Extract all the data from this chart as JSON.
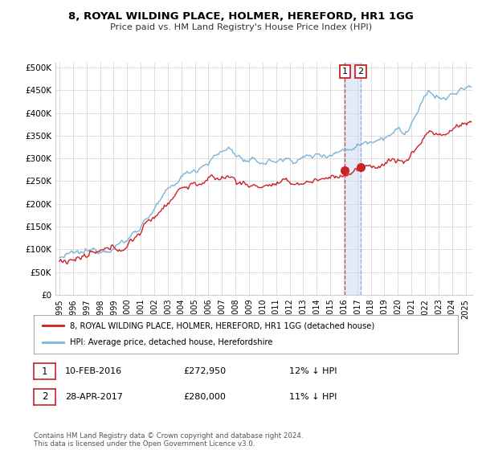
{
  "title": "8, ROYAL WILDING PLACE, HOLMER, HEREFORD, HR1 1GG",
  "subtitle": "Price paid vs. HM Land Registry's House Price Index (HPI)",
  "ylabel_ticks": [
    "£0",
    "£50K",
    "£100K",
    "£150K",
    "£200K",
    "£250K",
    "£300K",
    "£350K",
    "£400K",
    "£450K",
    "£500K"
  ],
  "ytick_values": [
    0,
    50000,
    100000,
    150000,
    200000,
    250000,
    300000,
    350000,
    400000,
    450000,
    500000
  ],
  "ylim": [
    0,
    510000
  ],
  "xlim_start": 1994.7,
  "xlim_end": 2025.5,
  "hpi_color": "#7ab4d8",
  "price_color": "#cc2222",
  "marker1_date_x": 2016.08,
  "marker2_date_x": 2017.25,
  "sale1_label": "10-FEB-2016",
  "sale1_price": "£272,950",
  "sale1_pct": "12% ↓ HPI",
  "sale2_label": "28-APR-2017",
  "sale2_price": "£280,000",
  "sale2_pct": "11% ↓ HPI",
  "legend_line1": "8, ROYAL WILDING PLACE, HOLMER, HEREFORD, HR1 1GG (detached house)",
  "legend_line2": "HPI: Average price, detached house, Herefordshire",
  "footnote": "Contains HM Land Registry data © Crown copyright and database right 2024.\nThis data is licensed under the Open Government Licence v3.0.",
  "background_color": "#ffffff",
  "grid_color": "#d0d0d0",
  "xtick_years": [
    1995,
    1996,
    1997,
    1998,
    1999,
    2000,
    2001,
    2002,
    2003,
    2004,
    2005,
    2006,
    2007,
    2008,
    2009,
    2010,
    2011,
    2012,
    2013,
    2014,
    2015,
    2016,
    2017,
    2018,
    2019,
    2020,
    2021,
    2022,
    2023,
    2024,
    2025
  ],
  "sale1_price_val": 272950,
  "sale2_price_val": 280000
}
